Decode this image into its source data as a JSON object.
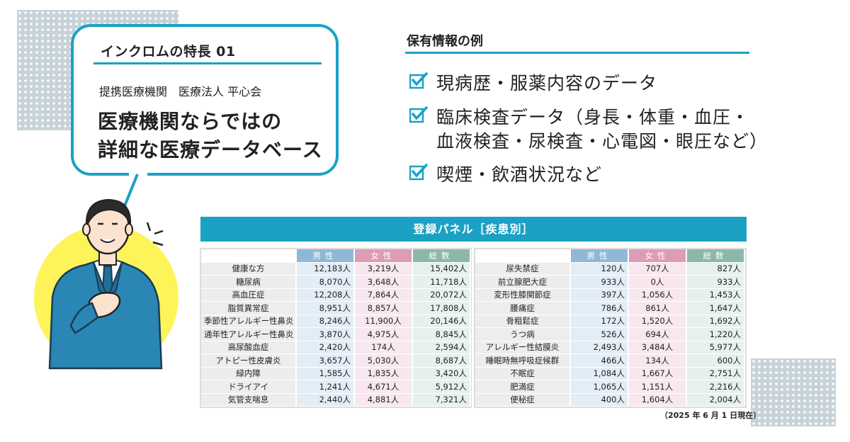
{
  "feature": {
    "label": "インクロムの特長 01",
    "partner": "提携医療機関　医療法人 平心会",
    "headline_line1": "医療機関ならではの",
    "headline_line2": "詳細な医療データベース"
  },
  "info": {
    "title": "保有情報の例",
    "items": [
      {
        "lines": [
          "現病歴・服薬内容のデータ"
        ]
      },
      {
        "lines": [
          "臨床検査データ（身長・体重・血圧・",
          "血液検査・尿検査・心電図・眼圧など）"
        ]
      },
      {
        "lines": [
          "喫煙・飲酒状況など"
        ]
      }
    ]
  },
  "panel": {
    "title": "登録パネル［疾患別］",
    "headers": {
      "male": "男性",
      "female": "女性",
      "total": "総数"
    },
    "left_rows": [
      {
        "name": "健康な方",
        "male": "12,183人",
        "female": "3,219人",
        "total": "15,402人"
      },
      {
        "name": "糖尿病",
        "male": "8,070人",
        "female": "3,648人",
        "total": "11,718人"
      },
      {
        "name": "高血圧症",
        "male": "12,208人",
        "female": "7,864人",
        "total": "20,072人"
      },
      {
        "name": "脂質異常症",
        "male": "8,951人",
        "female": "8,857人",
        "total": "17,808人"
      },
      {
        "name": "季節性アレルギー性鼻炎",
        "male": "8,246人",
        "female": "11,900人",
        "total": "20,146人"
      },
      {
        "name": "通年性アレルギー性鼻炎",
        "male": "3,870人",
        "female": "4,975人",
        "total": "8,845人"
      },
      {
        "name": "高尿酸血症",
        "male": "2,420人",
        "female": "174人",
        "total": "2,594人"
      },
      {
        "name": "アトピー性皮膚炎",
        "male": "3,657人",
        "female": "5,030人",
        "total": "8,687人"
      },
      {
        "name": "緑内障",
        "male": "1,585人",
        "female": "1,835人",
        "total": "3,420人"
      },
      {
        "name": "ドライアイ",
        "male": "1,241人",
        "female": "4,671人",
        "total": "5,912人"
      },
      {
        "name": "気管支喘息",
        "male": "2,440人",
        "female": "4,881人",
        "total": "7,321人"
      }
    ],
    "right_rows": [
      {
        "name": "尿失禁症",
        "male": "120人",
        "female": "707人",
        "total": "827人"
      },
      {
        "name": "前立腺肥大症",
        "male": "933人",
        "female": "0人",
        "total": "933人"
      },
      {
        "name": "変形性膝関節症",
        "male": "397人",
        "female": "1,056人",
        "total": "1,453人"
      },
      {
        "name": "腰痛症",
        "male": "786人",
        "female": "861人",
        "total": "1,647人"
      },
      {
        "name": "骨粗鬆症",
        "male": "172人",
        "female": "1,520人",
        "total": "1,692人"
      },
      {
        "name": "うつ病",
        "male": "526人",
        "female": "694人",
        "total": "1,220人"
      },
      {
        "name": "アレルギー性結膜炎",
        "male": "2,493人",
        "female": "3,484人",
        "total": "5,977人"
      },
      {
        "name": "睡眠時無呼吸症候群",
        "male": "466人",
        "female": "134人",
        "total": "600人"
      },
      {
        "name": "不眠症",
        "male": "1,084人",
        "female": "1,667人",
        "total": "2,751人"
      },
      {
        "name": "肥満症",
        "male": "1,065人",
        "female": "1,151人",
        "total": "2,216人"
      },
      {
        "name": "便秘症",
        "male": "400人",
        "female": "1,604人",
        "total": "2,004人"
      }
    ],
    "footnote": "（2025 年 6 月 1 日現在）"
  },
  "icons": {
    "check": "checkbox-check-icon",
    "person": "businessman-illustration"
  },
  "colors": {
    "accent": "#1aa1c4",
    "male": "#8fb8d6",
    "female": "#dd9cb5",
    "total": "#8cb8a8",
    "yellow": "#fff35a",
    "suit": "#2a86b4"
  }
}
